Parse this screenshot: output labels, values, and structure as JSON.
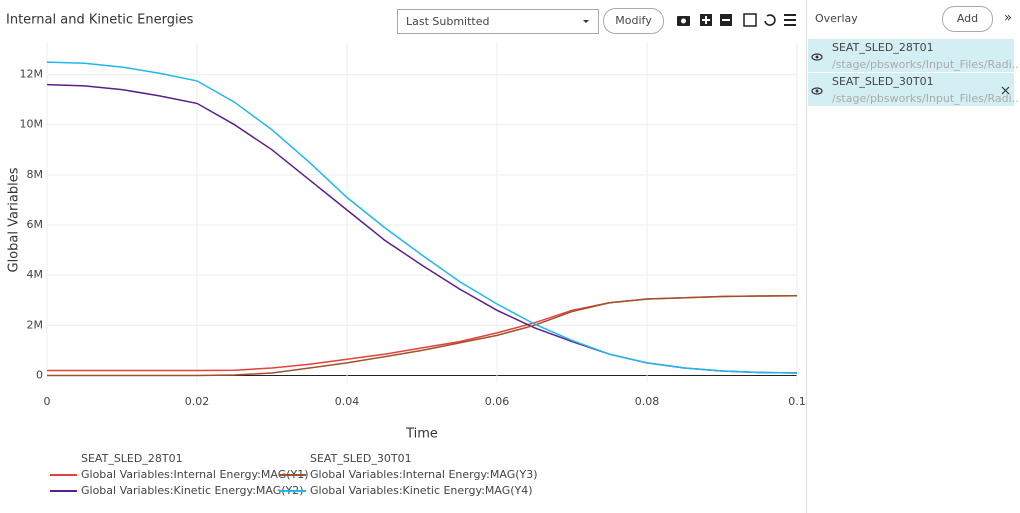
{
  "ui": {
    "dropdown": "Last Submitted",
    "modify": "Modify",
    "overlay_label": "Overlay",
    "add": "Add",
    "collapse": "»",
    "overlay_items": [
      {
        "name": "SEAT_SLED_28T01",
        "path": "/stage/pbsworks/Input_Files/Radi..."
      },
      {
        "name": "SEAT_SLED_30T01",
        "path": "/stage/pbsworks/Input_Files/Radi..."
      }
    ]
  },
  "chart_data": {
    "type": "line",
    "title": "Internal and Kinetic Energies",
    "x_label": "Time",
    "y_label": "Global Variables",
    "legend_groups": [
      "SEAT_SLED_28T01",
      "SEAT_SLED_30T01"
    ],
    "x": [
      0,
      0.005,
      0.01,
      0.015,
      0.02,
      0.025,
      0.03,
      0.035,
      0.04,
      0.045,
      0.05,
      0.055,
      0.06,
      0.065,
      0.07,
      0.075,
      0.08,
      0.085,
      0.09,
      0.095,
      0.1
    ],
    "series": [
      {
        "name": "Global Variables:Internal Energy:MAG(Y1)",
        "color": "#e8413c",
        "values": [
          200000,
          200000,
          200000,
          200000,
          200000,
          210000,
          300000,
          450000,
          650000,
          850000,
          1100000,
          1350000,
          1700000,
          2100000,
          2600000,
          2900000,
          3050000,
          3100000,
          3150000,
          3170000,
          3180000
        ]
      },
      {
        "name": "Global Variables:Kinetic Energy:MAG(Y2)",
        "color": "#5a1f8c",
        "values": [
          11600000,
          11550000,
          11400000,
          11150000,
          10850000,
          10000000,
          9000000,
          7800000,
          6600000,
          5400000,
          4400000,
          3450000,
          2600000,
          1900000,
          1350000,
          850000,
          500000,
          300000,
          180000,
          120000,
          100000
        ]
      },
      {
        "name": "Global Variables:Internal Energy:MAG(Y3)",
        "color": "#a0522d",
        "values": [
          0,
          0,
          0,
          0,
          0,
          20000,
          100000,
          300000,
          500000,
          750000,
          1000000,
          1300000,
          1600000,
          2000000,
          2550000,
          2900000,
          3050000,
          3100000,
          3150000,
          3170000,
          3180000
        ]
      },
      {
        "name": "Global Variables:Kinetic Energy:MAG(Y4)",
        "color": "#1fb8ee",
        "values": [
          12500000,
          12450000,
          12300000,
          12050000,
          11750000,
          10900000,
          9800000,
          8500000,
          7100000,
          5900000,
          4800000,
          3750000,
          2850000,
          2050000,
          1400000,
          850000,
          500000,
          300000,
          180000,
          120000,
          100000
        ]
      }
    ],
    "xlim": [
      0,
      0.1
    ],
    "xticks": [
      0,
      0.02,
      0.04,
      0.06,
      0.08,
      0.1
    ],
    "ylim": [
      -300000,
      13300000
    ],
    "yticks": [
      0,
      {
        "value": 2000000,
        "label": "2M"
      },
      {
        "value": 4000000,
        "label": "4M"
      },
      {
        "value": 6000000,
        "label": "6M"
      },
      {
        "value": 8000000,
        "label": "8M"
      },
      {
        "value": 10000000,
        "label": "10M"
      },
      {
        "value": 12000000,
        "label": "12M"
      }
    ],
    "grid": true
  }
}
